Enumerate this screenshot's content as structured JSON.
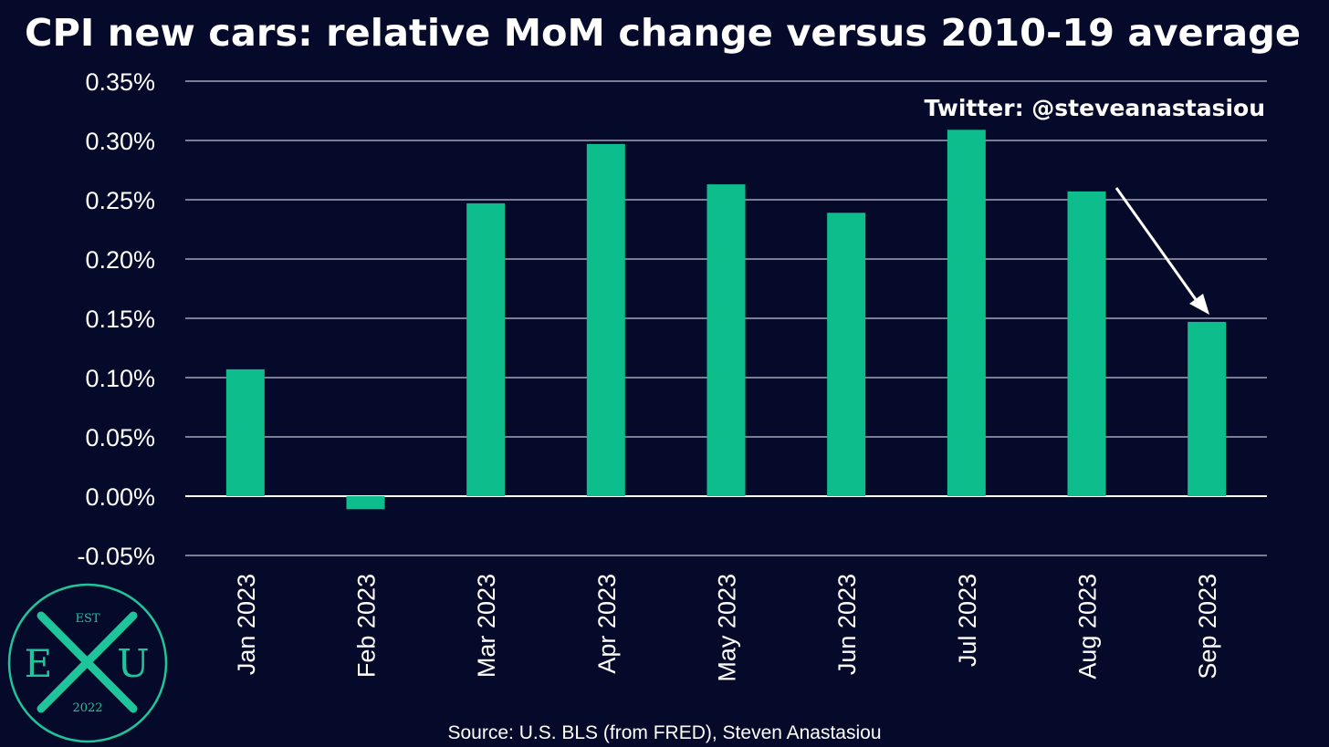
{
  "chart_data": {
    "type": "bar",
    "title": "CPI new cars: relative MoM change versus 2010-19 average",
    "categories": [
      "Jan 2023",
      "Feb 2023",
      "Mar 2023",
      "Apr 2023",
      "May 2023",
      "Jun 2023",
      "Jul 2023",
      "Aug 2023",
      "Sep 2023"
    ],
    "values": [
      0.107,
      -0.011,
      0.247,
      0.297,
      0.263,
      0.239,
      0.309,
      0.257,
      0.147
    ],
    "value_unit": "%",
    "ylim": [
      -0.05,
      0.35
    ],
    "yticks": [
      "0.35%",
      "0.30%",
      "0.25%",
      "0.20%",
      "0.15%",
      "0.10%",
      "0.05%",
      "0.00%",
      "-0.05%"
    ],
    "ytick_values": [
      0.35,
      0.3,
      0.25,
      0.2,
      0.15,
      0.1,
      0.05,
      0.0,
      -0.05
    ],
    "xlabel": "",
    "ylabel": "",
    "grid": true,
    "annotations": {
      "handle": "Twitter: @steveanastasiou",
      "arrow": {
        "from": "Aug 2023",
        "to": "Sep 2023"
      }
    },
    "source": "Source: U.S. BLS (from FRED), Steven Anastasiou"
  },
  "logo": {
    "top_text": "EST",
    "left_letter": "E",
    "right_letter": "U",
    "bottom_text": "2022"
  },
  "colors": {
    "background": "#050a2a",
    "bar": "#0dbd8b",
    "grid": "#7a7d93",
    "zero_line": "#ffffff",
    "text": "#ffffff",
    "logo": "#1fc49a"
  }
}
